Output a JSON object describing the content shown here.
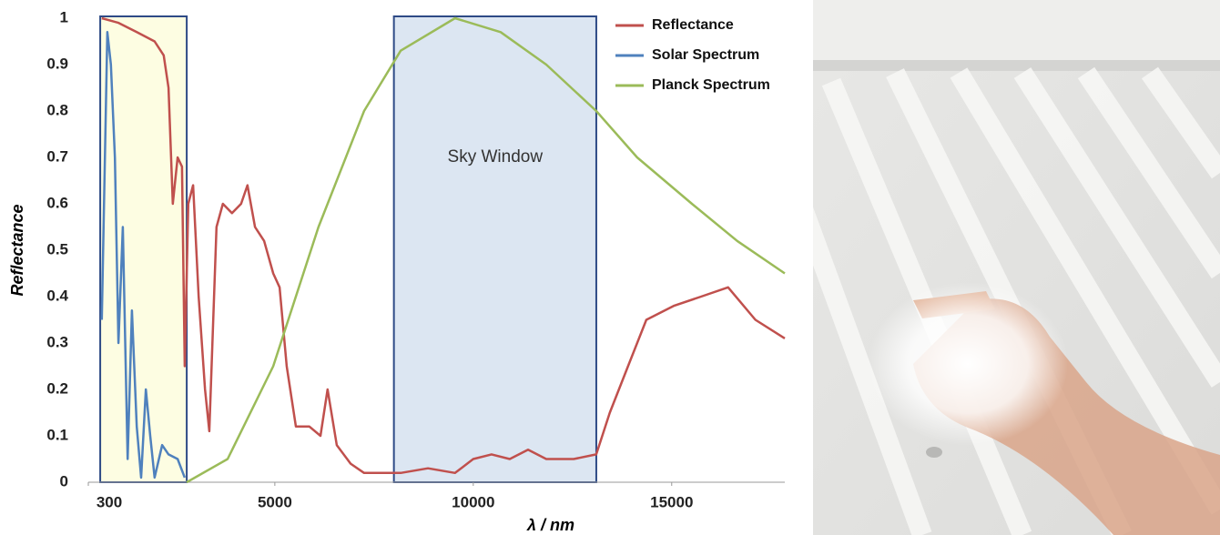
{
  "chart_data": {
    "type": "line",
    "x_label": "λ / nm",
    "y_label": "Reflectance",
    "xlim": [
      300,
      17850
    ],
    "ylim": [
      0,
      1
    ],
    "xticks": [
      300,
      5000,
      10000,
      15000
    ],
    "yticks": [
      0,
      0.1,
      0.2,
      0.3,
      0.4,
      0.5,
      0.6,
      0.7,
      0.8,
      0.9,
      1
    ],
    "legend": "top-right",
    "regions": [
      {
        "start": 600,
        "end": 2780,
        "color": "#fdfde2"
      },
      {
        "start": 8000,
        "end": 13100,
        "color": "#dce6f2",
        "label": "Sky Window"
      }
    ],
    "series": [
      {
        "name": "Reflectance",
        "color": "#c0504d",
        "x": [
          640,
          1060,
          1520,
          1970,
          2200,
          2320,
          2430,
          2550,
          2660,
          2730,
          2820,
          2940,
          3080,
          3240,
          3350,
          3530,
          3690,
          3920,
          4150,
          4310,
          4500,
          4730,
          4960,
          5120,
          5300,
          5530,
          5870,
          6150,
          6330,
          6560,
          6910,
          7250,
          7710,
          8170,
          8860,
          9540,
          10000,
          10460,
          10920,
          11380,
          11840,
          12530,
          13100,
          13440,
          13900,
          14360,
          15050,
          15740,
          16420,
          17110,
          17850
        ],
        "values": [
          1.0,
          0.99,
          0.97,
          0.95,
          0.92,
          0.85,
          0.6,
          0.7,
          0.68,
          0.25,
          0.6,
          0.64,
          0.4,
          0.2,
          0.11,
          0.55,
          0.6,
          0.58,
          0.6,
          0.64,
          0.55,
          0.52,
          0.45,
          0.42,
          0.25,
          0.12,
          0.12,
          0.1,
          0.2,
          0.08,
          0.04,
          0.02,
          0.02,
          0.02,
          0.03,
          0.02,
          0.05,
          0.06,
          0.05,
          0.07,
          0.05,
          0.05,
          0.06,
          0.15,
          0.25,
          0.35,
          0.38,
          0.4,
          0.42,
          0.35,
          0.31
        ]
      },
      {
        "name": "Solar Spectrum",
        "color": "#4f81bd",
        "x": [
          640,
          780,
          870,
          970,
          1060,
          1170,
          1290,
          1400,
          1520,
          1630,
          1750,
          1860,
          1970,
          2160,
          2320,
          2550,
          2730
        ],
        "values": [
          0.35,
          0.97,
          0.9,
          0.7,
          0.3,
          0.55,
          0.05,
          0.37,
          0.12,
          0.01,
          0.2,
          0.1,
          0.01,
          0.08,
          0.06,
          0.05,
          0.01
        ]
      },
      {
        "name": "Planck Spectrum",
        "color": "#9bbb59",
        "x": [
          2780,
          3810,
          4960,
          6100,
          7250,
          8170,
          9540,
          10690,
          11840,
          13100,
          14130,
          15510,
          16650,
          17850
        ],
        "values": [
          0,
          0.05,
          0.25,
          0.55,
          0.8,
          0.93,
          1.0,
          0.97,
          0.9,
          0.8,
          0.7,
          0.6,
          0.52,
          0.45
        ]
      }
    ]
  }
}
